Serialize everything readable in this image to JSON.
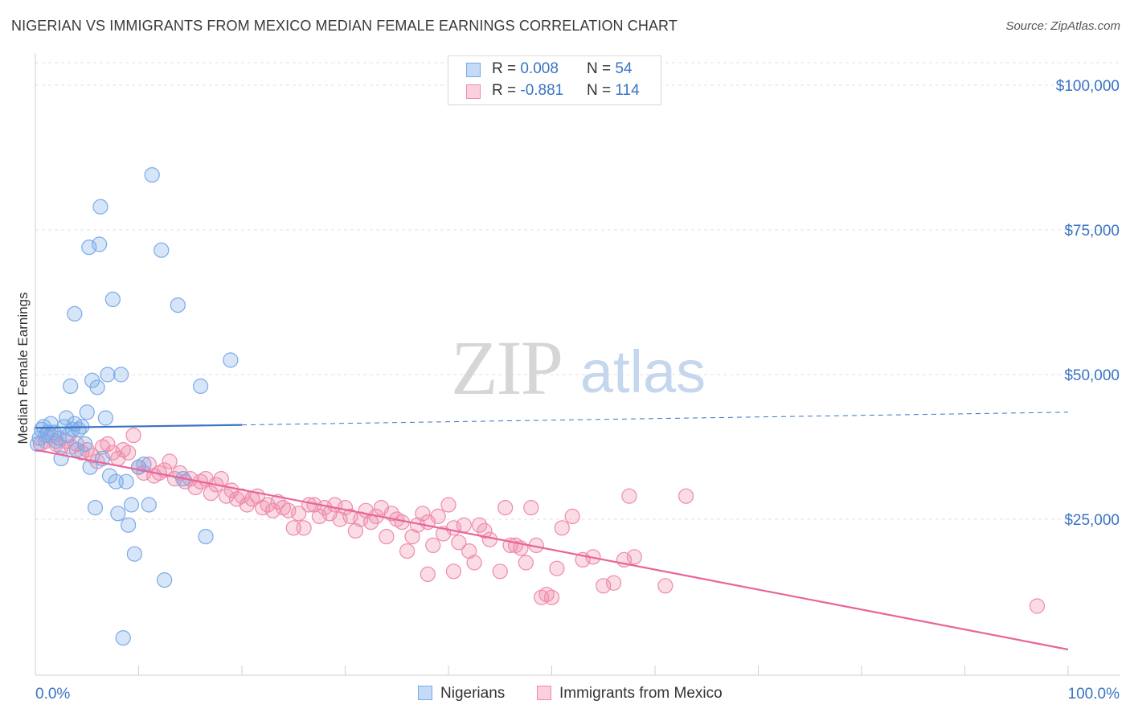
{
  "title": "NIGERIAN VS IMMIGRANTS FROM MEXICO MEDIAN FEMALE EARNINGS CORRELATION CHART",
  "source": "Source: ZipAtlas.com",
  "watermark": {
    "zip": "ZIP",
    "atlas": "atlas"
  },
  "colors": {
    "blue": "#7aaae8",
    "blue_line": "#3a74c4",
    "pink": "#f08aaa",
    "pink_line": "#e8649a",
    "axis_label": "#3a74c4"
  },
  "legend": {
    "rows": [
      {
        "r_label": "R = ",
        "r_value": "0.008",
        "n_label": "N = ",
        "n_value": "54"
      },
      {
        "r_label": "R = ",
        "r_value": "-0.881",
        "n_label": "N = ",
        "n_value": "114"
      }
    ]
  },
  "bottom_legend": [
    "Nigerians",
    "Immigrants from Mexico"
  ],
  "chart_data": {
    "type": "scatter",
    "ylabel": "Median Female Earnings",
    "x_tick_labels": [
      "0.0%",
      "100.0%"
    ],
    "y_tick_labels": [
      "$100,000",
      "$75,000",
      "$50,000",
      "$25,000"
    ],
    "y_ticks": [
      100000,
      75000,
      50000,
      25000
    ],
    "xlim": [
      0,
      100
    ],
    "ylim": [
      0,
      105000
    ],
    "series": [
      {
        "name": "Nigerians",
        "r": 0.008,
        "n": 54,
        "trend": {
          "x0": 0,
          "y0": 40800,
          "x1": 20,
          "y1": 41300,
          "dashed_to_x": 100,
          "dashed_to_y": 43500
        },
        "points": [
          [
            0.2,
            38000
          ],
          [
            0.4,
            39000
          ],
          [
            0.6,
            40500
          ],
          [
            0.8,
            41000
          ],
          [
            1.0,
            39500
          ],
          [
            1.2,
            40000
          ],
          [
            1.5,
            41500
          ],
          [
            1.8,
            40000
          ],
          [
            2.0,
            38500
          ],
          [
            2.3,
            39000
          ],
          [
            2.5,
            35500
          ],
          [
            2.8,
            41000
          ],
          [
            3.0,
            42500
          ],
          [
            3.2,
            39500
          ],
          [
            3.4,
            48000
          ],
          [
            3.6,
            40500
          ],
          [
            3.8,
            41500
          ],
          [
            4.0,
            37000
          ],
          [
            4.2,
            40500
          ],
          [
            4.5,
            41000
          ],
          [
            4.8,
            38000
          ],
          [
            5.0,
            43500
          ],
          [
            5.3,
            34000
          ],
          [
            5.5,
            49000
          ],
          [
            5.8,
            27000
          ],
          [
            6.0,
            47800
          ],
          [
            6.3,
            79000
          ],
          [
            6.5,
            35500
          ],
          [
            6.8,
            42500
          ],
          [
            7.0,
            50000
          ],
          [
            7.2,
            32500
          ],
          [
            7.5,
            63000
          ],
          [
            7.8,
            31500
          ],
          [
            8.0,
            26000
          ],
          [
            8.3,
            50000
          ],
          [
            8.5,
            4500
          ],
          [
            8.8,
            31500
          ],
          [
            9.0,
            24000
          ],
          [
            9.3,
            27500
          ],
          [
            9.6,
            19000
          ],
          [
            10.0,
            34000
          ],
          [
            10.5,
            34500
          ],
          [
            11.0,
            27500
          ],
          [
            11.3,
            84500
          ],
          [
            12.2,
            71500
          ],
          [
            12.5,
            14500
          ],
          [
            13.8,
            62000
          ],
          [
            14.3,
            32000
          ],
          [
            16.0,
            48000
          ],
          [
            16.5,
            22000
          ],
          [
            18.9,
            52500
          ],
          [
            3.8,
            60500
          ],
          [
            5.2,
            72000
          ],
          [
            6.2,
            72500
          ]
        ]
      },
      {
        "name": "Immigrants from Mexico",
        "r": -0.881,
        "n": 114,
        "trend": {
          "x0": 0,
          "y0": 37000,
          "x1": 100,
          "y1": 2500
        },
        "points": [
          [
            0.5,
            38000
          ],
          [
            1.0,
            38500
          ],
          [
            1.5,
            39500
          ],
          [
            2.0,
            38000
          ],
          [
            2.5,
            37500
          ],
          [
            3.0,
            38500
          ],
          [
            3.5,
            37500
          ],
          [
            4.0,
            38000
          ],
          [
            4.5,
            36500
          ],
          [
            5.0,
            37000
          ],
          [
            5.5,
            36000
          ],
          [
            6.0,
            35000
          ],
          [
            6.5,
            37500
          ],
          [
            7.0,
            38000
          ],
          [
            7.5,
            36500
          ],
          [
            8.0,
            35500
          ],
          [
            8.5,
            37000
          ],
          [
            9.0,
            36500
          ],
          [
            9.5,
            39500
          ],
          [
            10.0,
            34000
          ],
          [
            10.5,
            33000
          ],
          [
            11.0,
            34500
          ],
          [
            11.5,
            32500
          ],
          [
            12.0,
            33000
          ],
          [
            12.5,
            33500
          ],
          [
            13.0,
            35000
          ],
          [
            13.5,
            32000
          ],
          [
            14.0,
            33000
          ],
          [
            14.5,
            31500
          ],
          [
            15.0,
            32000
          ],
          [
            15.5,
            30500
          ],
          [
            16.0,
            31500
          ],
          [
            16.5,
            32000
          ],
          [
            17.0,
            29500
          ],
          [
            17.5,
            31000
          ],
          [
            18.0,
            32000
          ],
          [
            18.5,
            29000
          ],
          [
            19.0,
            30000
          ],
          [
            19.5,
            28500
          ],
          [
            20.0,
            29000
          ],
          [
            20.5,
            27500
          ],
          [
            21.0,
            28500
          ],
          [
            21.5,
            29000
          ],
          [
            22.0,
            27000
          ],
          [
            22.5,
            27500
          ],
          [
            23.0,
            26500
          ],
          [
            23.5,
            28000
          ],
          [
            24.0,
            27000
          ],
          [
            24.5,
            26500
          ],
          [
            25.0,
            23500
          ],
          [
            25.5,
            26000
          ],
          [
            26.0,
            23500
          ],
          [
            26.5,
            27500
          ],
          [
            27.0,
            27500
          ],
          [
            27.5,
            25500
          ],
          [
            28.0,
            27000
          ],
          [
            28.5,
            26000
          ],
          [
            29.0,
            27500
          ],
          [
            29.5,
            25000
          ],
          [
            30.0,
            27000
          ],
          [
            30.5,
            25500
          ],
          [
            31.0,
            23000
          ],
          [
            31.5,
            25000
          ],
          [
            32.0,
            26500
          ],
          [
            32.5,
            24500
          ],
          [
            33.0,
            25500
          ],
          [
            33.5,
            27000
          ],
          [
            34.0,
            22000
          ],
          [
            34.5,
            26000
          ],
          [
            35.0,
            25000
          ],
          [
            35.5,
            24500
          ],
          [
            36.0,
            19500
          ],
          [
            36.5,
            22000
          ],
          [
            37.0,
            24000
          ],
          [
            37.5,
            26000
          ],
          [
            38.0,
            24500
          ],
          [
            38.5,
            20500
          ],
          [
            39.0,
            25500
          ],
          [
            39.5,
            22500
          ],
          [
            40.0,
            27500
          ],
          [
            40.5,
            23500
          ],
          [
            41.0,
            21000
          ],
          [
            41.5,
            24000
          ],
          [
            42.0,
            19500
          ],
          [
            42.5,
            17500
          ],
          [
            43.0,
            24000
          ],
          [
            43.5,
            23000
          ],
          [
            44.0,
            21500
          ],
          [
            45.0,
            16000
          ],
          [
            46.0,
            20500
          ],
          [
            46.5,
            20500
          ],
          [
            47.0,
            20000
          ],
          [
            47.5,
            17500
          ],
          [
            48.0,
            27000
          ],
          [
            48.5,
            20500
          ],
          [
            49.0,
            11500
          ],
          [
            49.5,
            12000
          ],
          [
            50.0,
            11500
          ],
          [
            50.5,
            16500
          ],
          [
            51.0,
            23500
          ],
          [
            52.0,
            25500
          ],
          [
            53.0,
            18000
          ],
          [
            54.0,
            18500
          ],
          [
            55.0,
            13500
          ],
          [
            56.0,
            14000
          ],
          [
            57.0,
            18000
          ],
          [
            57.5,
            29000
          ],
          [
            58.0,
            18500
          ],
          [
            61.0,
            13500
          ],
          [
            63.0,
            29000
          ],
          [
            97.0,
            10000
          ],
          [
            40.5,
            16000
          ],
          [
            38.0,
            15500
          ],
          [
            45.5,
            27000
          ]
        ]
      }
    ]
  }
}
